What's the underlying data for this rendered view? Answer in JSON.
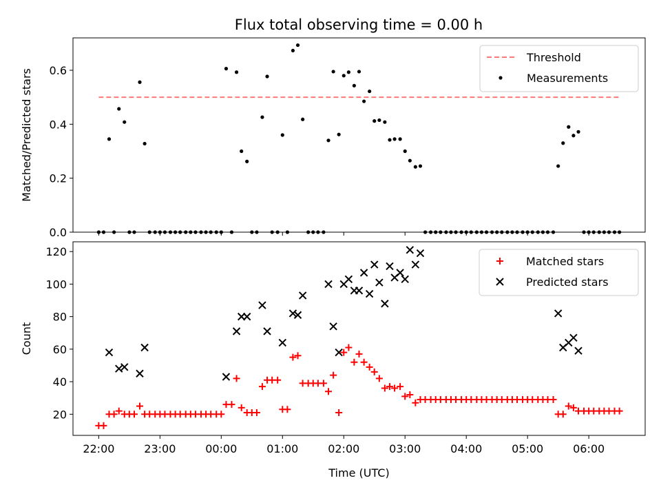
{
  "figure": {
    "title": "Flux total observing time = 0.00 h"
  },
  "chart_data": [
    {
      "type": "scatter",
      "ylabel": "Matched/Predicted stars",
      "ylim": [
        0,
        0.72
      ],
      "yticks": [
        0.0,
        0.2,
        0.4,
        0.6
      ],
      "ytick_labels": [
        "0.0",
        "0.2",
        "0.4",
        "0.6"
      ],
      "xlim": [
        -0.42,
        8.92
      ],
      "xticks": [
        0,
        1,
        2,
        3,
        4,
        5,
        6,
        7,
        8
      ],
      "grid": false,
      "legend": {
        "position": "top-right",
        "entries": [
          {
            "label": "Threshold",
            "style": "dashed-line",
            "color": "#ff7777"
          },
          {
            "label": "Measurements",
            "style": "dot",
            "color": "#000000"
          }
        ]
      },
      "threshold": {
        "name": "Threshold",
        "y": 0.5,
        "x_range": [
          0,
          8.5
        ],
        "color": "#ff7777"
      },
      "series": [
        {
          "name": "Measurements",
          "color": "#000000",
          "points": [
            [
              0.0,
              0
            ],
            [
              0.08,
              0
            ],
            [
              0.17,
              0.345
            ],
            [
              0.25,
              0
            ],
            [
              0.33,
              0.457
            ],
            [
              0.42,
              0.408
            ],
            [
              0.5,
              0
            ],
            [
              0.58,
              0
            ],
            [
              0.67,
              0.556
            ],
            [
              0.75,
              0.328
            ],
            [
              0.83,
              0
            ],
            [
              0.92,
              0
            ],
            [
              1.0,
              0
            ],
            [
              1.08,
              0
            ],
            [
              1.17,
              0
            ],
            [
              1.25,
              0
            ],
            [
              1.33,
              0
            ],
            [
              1.42,
              0
            ],
            [
              1.5,
              0
            ],
            [
              1.58,
              0
            ],
            [
              1.67,
              0
            ],
            [
              1.75,
              0
            ],
            [
              1.83,
              0
            ],
            [
              1.92,
              0
            ],
            [
              2.0,
              0
            ],
            [
              2.08,
              0.606
            ],
            [
              2.17,
              0
            ],
            [
              2.25,
              0.593
            ],
            [
              2.33,
              0.3
            ],
            [
              2.42,
              0.262
            ],
            [
              2.5,
              0
            ],
            [
              2.58,
              0
            ],
            [
              2.67,
              0.426
            ],
            [
              2.75,
              0.577
            ],
            [
              2.83,
              0
            ],
            [
              2.92,
              0
            ],
            [
              3.0,
              0.36
            ],
            [
              3.08,
              0
            ],
            [
              3.17,
              0.673
            ],
            [
              3.25,
              0.693
            ],
            [
              3.33,
              0.418
            ],
            [
              3.42,
              0
            ],
            [
              3.5,
              0
            ],
            [
              3.58,
              0
            ],
            [
              3.67,
              0
            ],
            [
              3.75,
              0.34
            ],
            [
              3.83,
              0.595
            ],
            [
              3.92,
              0.362
            ],
            [
              4.0,
              0.58
            ],
            [
              4.08,
              0.593
            ],
            [
              4.17,
              0.543
            ],
            [
              4.25,
              0.595
            ],
            [
              4.33,
              0.485
            ],
            [
              4.42,
              0.522
            ],
            [
              4.5,
              0.412
            ],
            [
              4.58,
              0.415
            ],
            [
              4.67,
              0.408
            ],
            [
              4.75,
              0.342
            ],
            [
              4.83,
              0.345
            ],
            [
              4.92,
              0.345
            ],
            [
              5.0,
              0.3
            ],
            [
              5.08,
              0.265
            ],
            [
              5.17,
              0.242
            ],
            [
              5.25,
              0.245
            ],
            [
              5.33,
              0
            ],
            [
              5.42,
              0
            ],
            [
              5.5,
              0
            ],
            [
              5.58,
              0
            ],
            [
              5.67,
              0
            ],
            [
              5.75,
              0
            ],
            [
              5.83,
              0
            ],
            [
              5.92,
              0
            ],
            [
              6.0,
              0
            ],
            [
              6.08,
              0
            ],
            [
              6.17,
              0
            ],
            [
              6.25,
              0
            ],
            [
              6.33,
              0
            ],
            [
              6.42,
              0
            ],
            [
              6.5,
              0
            ],
            [
              6.58,
              0
            ],
            [
              6.67,
              0
            ],
            [
              6.75,
              0
            ],
            [
              6.83,
              0
            ],
            [
              6.92,
              0
            ],
            [
              7.0,
              0
            ],
            [
              7.08,
              0
            ],
            [
              7.17,
              0
            ],
            [
              7.25,
              0
            ],
            [
              7.33,
              0
            ],
            [
              7.42,
              0
            ],
            [
              7.5,
              0.245
            ],
            [
              7.58,
              0.33
            ],
            [
              7.67,
              0.39
            ],
            [
              7.75,
              0.358
            ],
            [
              7.83,
              0.372
            ],
            [
              7.92,
              0
            ],
            [
              8.0,
              0
            ],
            [
              8.08,
              0
            ],
            [
              8.17,
              0
            ],
            [
              8.25,
              0
            ],
            [
              8.33,
              0
            ],
            [
              8.42,
              0
            ],
            [
              8.5,
              0
            ]
          ]
        }
      ]
    },
    {
      "type": "scatter",
      "xlabel": "Time (UTC)",
      "ylabel": "Count",
      "ylim": [
        7,
        126
      ],
      "yticks": [
        20,
        40,
        60,
        80,
        100,
        120
      ],
      "ytick_labels": [
        "20",
        "40",
        "60",
        "80",
        "100",
        "120"
      ],
      "xlim": [
        -0.42,
        8.92
      ],
      "xticks": [
        0,
        1,
        2,
        3,
        4,
        5,
        6,
        7,
        8
      ],
      "xtick_labels": [
        "22:00",
        "23:00",
        "00:00",
        "01:00",
        "02:00",
        "03:00",
        "04:00",
        "05:00",
        "06:00"
      ],
      "grid": false,
      "legend": {
        "position": "top-right",
        "entries": [
          {
            "label": "Matched stars",
            "style": "plus",
            "color": "#ff0000"
          },
          {
            "label": "Predicted stars",
            "style": "x",
            "color": "#000000"
          }
        ]
      },
      "series": [
        {
          "name": "Matched stars",
          "marker": "plus",
          "color": "#ff0000",
          "points": [
            [
              0.0,
              13
            ],
            [
              0.08,
              13
            ],
            [
              0.17,
              20
            ],
            [
              0.25,
              20
            ],
            [
              0.33,
              22
            ],
            [
              0.42,
              20
            ],
            [
              0.5,
              20
            ],
            [
              0.58,
              20
            ],
            [
              0.67,
              25
            ],
            [
              0.75,
              20
            ],
            [
              0.83,
              20
            ],
            [
              0.92,
              20
            ],
            [
              1.0,
              20
            ],
            [
              1.08,
              20
            ],
            [
              1.17,
              20
            ],
            [
              1.25,
              20
            ],
            [
              1.33,
              20
            ],
            [
              1.42,
              20
            ],
            [
              1.5,
              20
            ],
            [
              1.58,
              20
            ],
            [
              1.67,
              20
            ],
            [
              1.75,
              20
            ],
            [
              1.83,
              20
            ],
            [
              1.92,
              20
            ],
            [
              2.0,
              20
            ],
            [
              2.08,
              26
            ],
            [
              2.17,
              26
            ],
            [
              2.25,
              42
            ],
            [
              2.33,
              24
            ],
            [
              2.42,
              21
            ],
            [
              2.5,
              21
            ],
            [
              2.58,
              21
            ],
            [
              2.67,
              37
            ],
            [
              2.75,
              41
            ],
            [
              2.83,
              41
            ],
            [
              2.92,
              41
            ],
            [
              3.0,
              23
            ],
            [
              3.08,
              23
            ],
            [
              3.17,
              55
            ],
            [
              3.25,
              56
            ],
            [
              3.33,
              39
            ],
            [
              3.42,
              39
            ],
            [
              3.5,
              39
            ],
            [
              3.58,
              39
            ],
            [
              3.67,
              39
            ],
            [
              3.75,
              34
            ],
            [
              3.83,
              44
            ],
            [
              3.92,
              21
            ],
            [
              4.0,
              58
            ],
            [
              4.08,
              61
            ],
            [
              4.17,
              52
            ],
            [
              4.25,
              57
            ],
            [
              4.33,
              52
            ],
            [
              4.42,
              49
            ],
            [
              4.5,
              46
            ],
            [
              4.58,
              42
            ],
            [
              4.67,
              36
            ],
            [
              4.75,
              37
            ],
            [
              4.83,
              36
            ],
            [
              4.92,
              37
            ],
            [
              5.0,
              31
            ],
            [
              5.08,
              32
            ],
            [
              5.17,
              27
            ],
            [
              5.25,
              29
            ],
            [
              5.33,
              29
            ],
            [
              5.42,
              29
            ],
            [
              5.5,
              29
            ],
            [
              5.58,
              29
            ],
            [
              5.67,
              29
            ],
            [
              5.75,
              29
            ],
            [
              5.83,
              29
            ],
            [
              5.92,
              29
            ],
            [
              6.0,
              29
            ],
            [
              6.08,
              29
            ],
            [
              6.17,
              29
            ],
            [
              6.25,
              29
            ],
            [
              6.33,
              29
            ],
            [
              6.42,
              29
            ],
            [
              6.5,
              29
            ],
            [
              6.58,
              29
            ],
            [
              6.67,
              29
            ],
            [
              6.75,
              29
            ],
            [
              6.83,
              29
            ],
            [
              6.92,
              29
            ],
            [
              7.0,
              29
            ],
            [
              7.08,
              29
            ],
            [
              7.17,
              29
            ],
            [
              7.25,
              29
            ],
            [
              7.33,
              29
            ],
            [
              7.42,
              29
            ],
            [
              7.5,
              20
            ],
            [
              7.58,
              20
            ],
            [
              7.67,
              25
            ],
            [
              7.75,
              24
            ],
            [
              7.83,
              22
            ],
            [
              7.92,
              22
            ],
            [
              8.0,
              22
            ],
            [
              8.08,
              22
            ],
            [
              8.17,
              22
            ],
            [
              8.25,
              22
            ],
            [
              8.33,
              22
            ],
            [
              8.42,
              22
            ],
            [
              8.5,
              22
            ]
          ]
        },
        {
          "name": "Predicted stars",
          "marker": "x",
          "color": "#000000",
          "points": [
            [
              0.17,
              58
            ],
            [
              0.33,
              48
            ],
            [
              0.42,
              49
            ],
            [
              0.67,
              45
            ],
            [
              0.75,
              61
            ],
            [
              2.08,
              43
            ],
            [
              2.25,
              71
            ],
            [
              2.33,
              80
            ],
            [
              2.42,
              80
            ],
            [
              2.67,
              87
            ],
            [
              2.75,
              71
            ],
            [
              3.0,
              64
            ],
            [
              3.17,
              82
            ],
            [
              3.25,
              81
            ],
            [
              3.33,
              93
            ],
            [
              3.75,
              100
            ],
            [
              3.83,
              74
            ],
            [
              3.92,
              58
            ],
            [
              4.0,
              100
            ],
            [
              4.08,
              103
            ],
            [
              4.17,
              96
            ],
            [
              4.25,
              96
            ],
            [
              4.33,
              107
            ],
            [
              4.42,
              94
            ],
            [
              4.5,
              112
            ],
            [
              4.58,
              101
            ],
            [
              4.67,
              88
            ],
            [
              4.75,
              111
            ],
            [
              4.83,
              104
            ],
            [
              4.92,
              107
            ],
            [
              5.0,
              103
            ],
            [
              5.08,
              121
            ],
            [
              5.17,
              112
            ],
            [
              5.25,
              119
            ],
            [
              7.5,
              82
            ],
            [
              7.58,
              61
            ],
            [
              7.67,
              64
            ],
            [
              7.75,
              67
            ],
            [
              7.83,
              59
            ]
          ]
        }
      ]
    }
  ]
}
